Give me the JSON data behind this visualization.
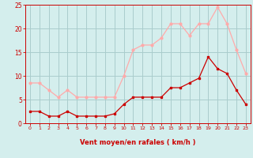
{
  "x": [
    0,
    1,
    2,
    3,
    4,
    5,
    6,
    7,
    8,
    9,
    10,
    11,
    12,
    13,
    14,
    15,
    16,
    17,
    18,
    19,
    20,
    21,
    22,
    23
  ],
  "avg_wind": [
    2.5,
    2.5,
    1.5,
    1.5,
    2.5,
    1.5,
    1.5,
    1.5,
    1.5,
    2.0,
    4.0,
    5.5,
    5.5,
    5.5,
    5.5,
    7.5,
    7.5,
    8.5,
    9.5,
    14.0,
    11.5,
    10.5,
    7.0,
    4.0
  ],
  "gust_wind": [
    8.5,
    8.5,
    7.0,
    5.5,
    7.0,
    5.5,
    5.5,
    5.5,
    5.5,
    5.5,
    10.0,
    15.5,
    16.5,
    16.5,
    18.0,
    21.0,
    21.0,
    18.5,
    21.0,
    21.0,
    24.5,
    21.0,
    15.5,
    10.5
  ],
  "avg_color": "#cc0000",
  "gust_color": "#ffaaaa",
  "bg_color": "#d4eeed",
  "grid_color": "#aacccc",
  "xlabel": "Vent moyen/en rafales ( km/h )",
  "ylim": [
    0,
    25
  ],
  "xlim_min": -0.5,
  "xlim_max": 23.5,
  "yticks": [
    0,
    5,
    10,
    15,
    20,
    25
  ],
  "xticks": [
    0,
    1,
    2,
    3,
    4,
    5,
    6,
    7,
    8,
    9,
    10,
    11,
    12,
    13,
    14,
    15,
    16,
    17,
    18,
    19,
    20,
    21,
    22,
    23
  ]
}
